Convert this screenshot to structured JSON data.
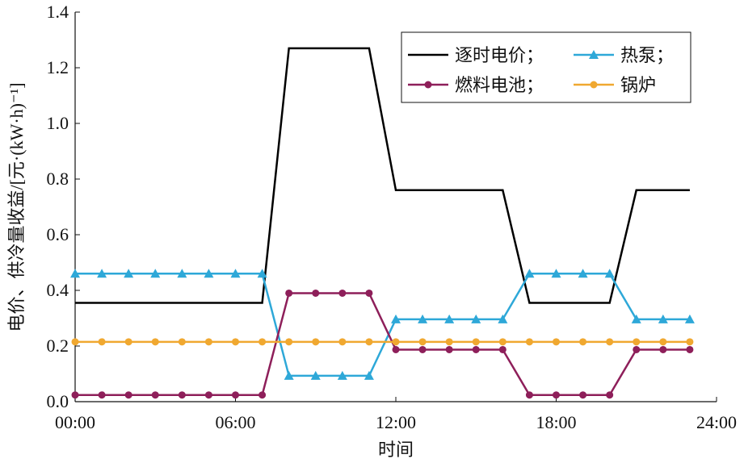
{
  "chart_data": {
    "type": "line",
    "xlabel": "时间",
    "ylabel": "电价、供冷量收益/[元·(kW·h)⁻¹]",
    "x": [
      0,
      1,
      2,
      3,
      4,
      5,
      6,
      7,
      8,
      9,
      10,
      11,
      12,
      13,
      14,
      15,
      16,
      17,
      18,
      19,
      20,
      21,
      22,
      23
    ],
    "xlim": [
      0,
      24
    ],
    "xticks": [
      {
        "value": 0,
        "label": "00:00"
      },
      {
        "value": 6,
        "label": "06:00"
      },
      {
        "value": 12,
        "label": "12:00"
      },
      {
        "value": 18,
        "label": "18:00"
      },
      {
        "value": 24,
        "label": "24:00"
      }
    ],
    "ylim": [
      0,
      1.4
    ],
    "yticks": [
      {
        "value": 0,
        "label": "0.0"
      },
      0.2,
      0.4,
      0.6,
      0.8,
      {
        "value": 1,
        "label": "1.0"
      },
      1.2,
      1.4
    ],
    "grid": false,
    "legend": "upper right",
    "series": [
      {
        "name": "逐时电价；",
        "color": "#000000",
        "marker": "none",
        "values": [
          0.355,
          0.355,
          0.355,
          0.355,
          0.355,
          0.355,
          0.355,
          0.355,
          1.27,
          1.27,
          1.27,
          1.27,
          0.76,
          0.76,
          0.76,
          0.76,
          0.76,
          0.355,
          0.355,
          0.355,
          0.355,
          0.76,
          0.76,
          0.76
        ]
      },
      {
        "name": "热泵；",
        "color": "#2ea8d8",
        "marker": "triangle",
        "values": [
          0.46,
          0.46,
          0.46,
          0.46,
          0.46,
          0.46,
          0.46,
          0.46,
          0.093,
          0.093,
          0.093,
          0.093,
          0.296,
          0.296,
          0.296,
          0.296,
          0.296,
          0.46,
          0.46,
          0.46,
          0.46,
          0.296,
          0.296,
          0.296
        ]
      },
      {
        "name": "燃料电池；",
        "color": "#8e1f5a",
        "marker": "circle",
        "values": [
          0.024,
          0.024,
          0.024,
          0.024,
          0.024,
          0.024,
          0.024,
          0.024,
          0.39,
          0.39,
          0.39,
          0.39,
          0.187,
          0.187,
          0.187,
          0.187,
          0.187,
          0.024,
          0.024,
          0.024,
          0.024,
          0.187,
          0.187,
          0.187
        ]
      },
      {
        "name": "锅炉",
        "color": "#f0a830",
        "marker": "circle",
        "values": [
          0.215,
          0.215,
          0.215,
          0.215,
          0.215,
          0.215,
          0.215,
          0.215,
          0.215,
          0.215,
          0.215,
          0.215,
          0.215,
          0.215,
          0.215,
          0.215,
          0.215,
          0.215,
          0.215,
          0.215,
          0.215,
          0.215,
          0.215,
          0.215
        ]
      }
    ]
  }
}
